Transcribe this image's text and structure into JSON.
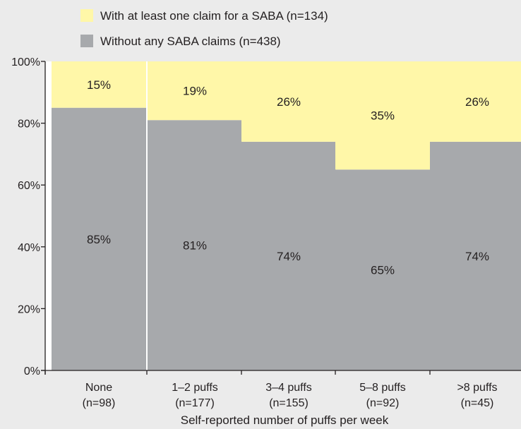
{
  "chart_data": {
    "type": "bar",
    "stacked": true,
    "categories": [
      "None",
      "1–2 puffs",
      "3–4 puffs",
      "5–8 puffs",
      ">8 puffs"
    ],
    "category_counts": [
      "(n=98)",
      "(n=177)",
      "(n=155)",
      "(n=92)",
      "(n=45)"
    ],
    "series": [
      {
        "name": "Without any SABA claims (n=438)",
        "color": "#a7a9ac",
        "values": [
          85,
          81,
          74,
          65,
          74
        ],
        "labels": [
          "85%",
          "81%",
          "74%",
          "65%",
          "74%"
        ]
      },
      {
        "name": "With at least one claim for a SABA (n=134)",
        "color": "#fff7a8",
        "values": [
          15,
          19,
          26,
          35,
          26
        ],
        "labels": [
          "15%",
          "19%",
          "26%",
          "35%",
          "26%"
        ]
      }
    ],
    "legend_order": [
      1,
      0
    ],
    "legend_position": "top-center",
    "xlabel": "Self-reported number of puffs per week",
    "ylabel": "",
    "ylim": [
      0,
      100
    ],
    "yticks": [
      0,
      20,
      40,
      60,
      80,
      100
    ],
    "ytick_labels": [
      "0%",
      "20%",
      "40%",
      "60%",
      "80%",
      "100%"
    ],
    "plot_background": "#ffffff",
    "page_background": "#ebebeb",
    "grid": false
  }
}
